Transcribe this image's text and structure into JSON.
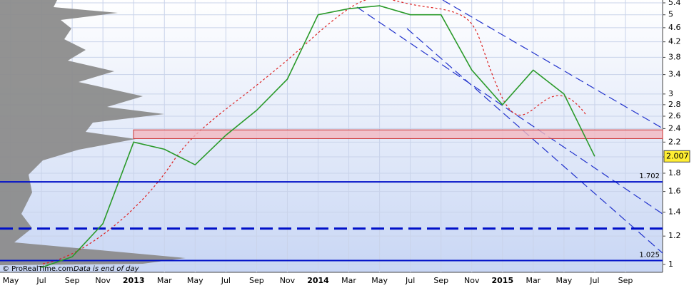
{
  "chart_data": {
    "type": "line",
    "log_scale": true,
    "grid": true,
    "categories": [
      "May",
      "Jul",
      "Sep",
      "Nov",
      "2013",
      "Mar",
      "May",
      "Jul",
      "Sep",
      "Nov",
      "2014",
      "Mar",
      "May",
      "Jul",
      "Sep",
      "Nov",
      "2015",
      "Mar",
      "May",
      "Jul",
      "Sep"
    ],
    "color": "#2a9a2a",
    "values": [
      null,
      0.98,
      1.05,
      1.3,
      2.2,
      2.1,
      1.9,
      2.3,
      2.7,
      3.3,
      5.0,
      5.2,
      5.3,
      5.0,
      5.0,
      3.5,
      2.8,
      3.5,
      3.0,
      2.007,
      null
    ],
    "ylim": [
      0.95,
      5.5
    ],
    "yticks": [
      1,
      1.2,
      1.4,
      1.6,
      1.8,
      2,
      2.2,
      2.4,
      2.6,
      2.8,
      3,
      3.4,
      3.8,
      4.2,
      4.6,
      5,
      5.4
    ],
    "last_price": 2.007,
    "levels": [
      1.702,
      1.025
    ],
    "dashed_levels": [
      1.26
    ],
    "zone": [
      2.25,
      2.38
    ],
    "credit": "© ProRealTime.com",
    "note": "Data is end of day"
  }
}
